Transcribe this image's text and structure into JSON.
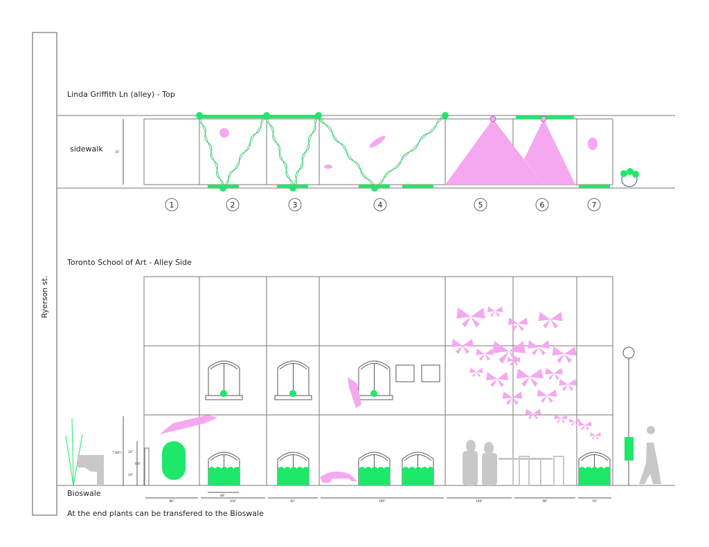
{
  "street_label": "Ryerson st.",
  "top_plan": {
    "title": "Linda Griffith Ln (alley) - Top",
    "sidewalk_label": "sidewalk",
    "sidewalk_dimension": "10'",
    "bay_numbers": [
      "1",
      "2",
      "3",
      "4",
      "5",
      "6",
      "7"
    ]
  },
  "elevation": {
    "title": "Toronto School of Art - Alley Side",
    "ground_label": "Bioswale",
    "height_dimensions": [
      "7'(84\")",
      "24\"",
      "24\"",
      "6'6\""
    ],
    "window_dimension": "48\"",
    "bay_widths": [
      "88\"",
      "104\"",
      "82\"",
      "196\"",
      "108\"",
      "98\"",
      "54\""
    ],
    "note": "At the end plants can be transfered to the Bioswale"
  },
  "colors": {
    "plant_green": "#1ee86a",
    "art_pink": "#f5a8f0",
    "figure_gray": "#c8c8c8"
  }
}
